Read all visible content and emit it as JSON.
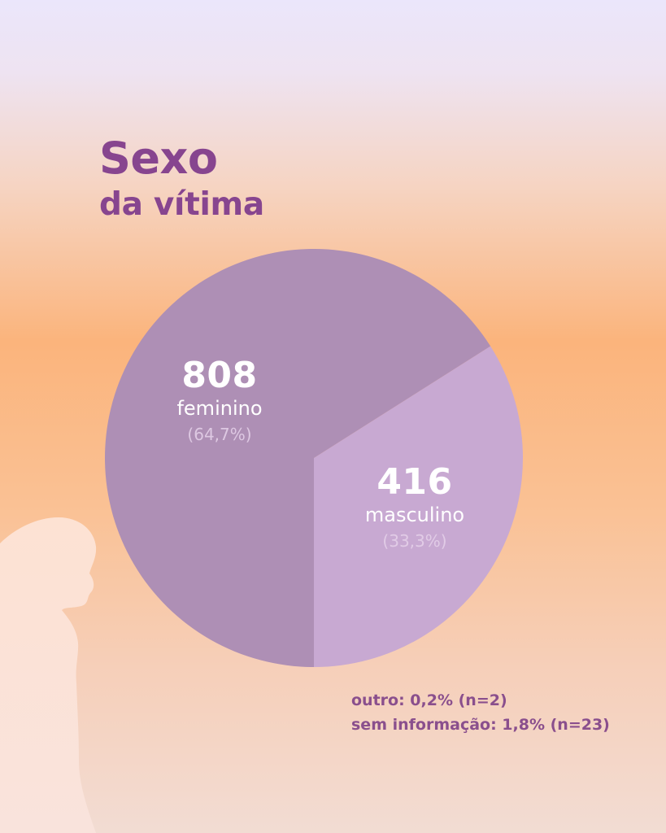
{
  "title": {
    "line1": "Sexo",
    "line2": "da vítima"
  },
  "chart_data": {
    "type": "pie",
    "title": "Sexo da vítima",
    "slices": [
      {
        "name": "feminino",
        "value": 808,
        "percent_label": "(64,7%)",
        "color": "#ae8fb5"
      },
      {
        "name": "masculino",
        "value": 416,
        "percent_label": "(33,3%)",
        "color": "#c8a9d2"
      }
    ],
    "notes": [
      "outro: 0,2% (n=2)",
      "sem informação: 1,8% (n=23)"
    ]
  },
  "colors": {
    "title": "#87458f",
    "notes": "#8a4f8d",
    "silhouette": "#fde6da"
  }
}
